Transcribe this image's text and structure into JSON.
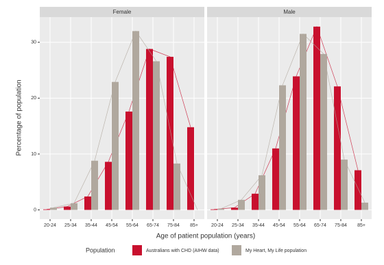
{
  "chart_data": {
    "type": "bar",
    "x_label": "Age of patient population (years)",
    "y_label": "Percentage of population",
    "legend_title": "Population",
    "categories": [
      "20-24",
      "25-34",
      "35-44",
      "45-54",
      "55-64",
      "65-74",
      "75-84",
      "85+"
    ],
    "series": [
      {
        "name": "Australians with CHD (AIHW data)",
        "color": "#c8102e"
      },
      {
        "name": "My Heart, My Life population",
        "color": "#b0a89e"
      }
    ],
    "facets": [
      {
        "title": "Female",
        "values": [
          [
            0.1,
            0.6,
            2.4,
            8.6,
            17.6,
            28.8,
            27.4,
            14.8
          ],
          [
            0.4,
            1.2,
            8.8,
            22.9,
            32.0,
            26.6,
            8.3,
            0.0
          ]
        ]
      },
      {
        "title": "Male",
        "values": [
          [
            0.1,
            0.4,
            2.9,
            11.0,
            23.9,
            32.8,
            22.1,
            7.1
          ],
          [
            0.2,
            1.8,
            6.2,
            22.3,
            31.5,
            27.9,
            9.0,
            1.3
          ]
        ]
      }
    ],
    "ylim": [
      -1.65,
      34.5
    ],
    "yticks": [
      0,
      10,
      20,
      30
    ],
    "grid": true
  }
}
